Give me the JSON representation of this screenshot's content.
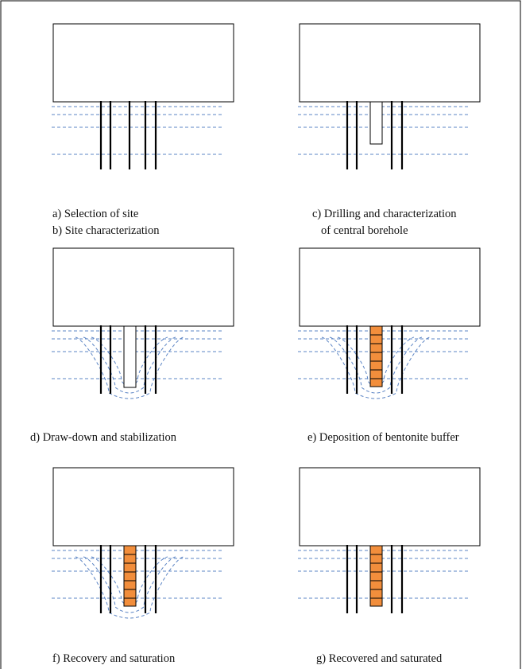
{
  "panels": [
    {
      "caption": [
        "a)  Selection of site",
        "b)  Site characterization"
      ]
    },
    {
      "caption": [
        "c)  Drilling and characterization",
        "of central borehole"
      ]
    },
    {
      "caption": [
        "d)  Draw-down and stabilization"
      ]
    },
    {
      "caption": [
        "e) Deposition of bentonite buffer"
      ]
    },
    {
      "caption": [
        "f)  Recovery and saturation"
      ]
    },
    {
      "caption": [
        "g) Recovered and saturated"
      ]
    }
  ]
}
